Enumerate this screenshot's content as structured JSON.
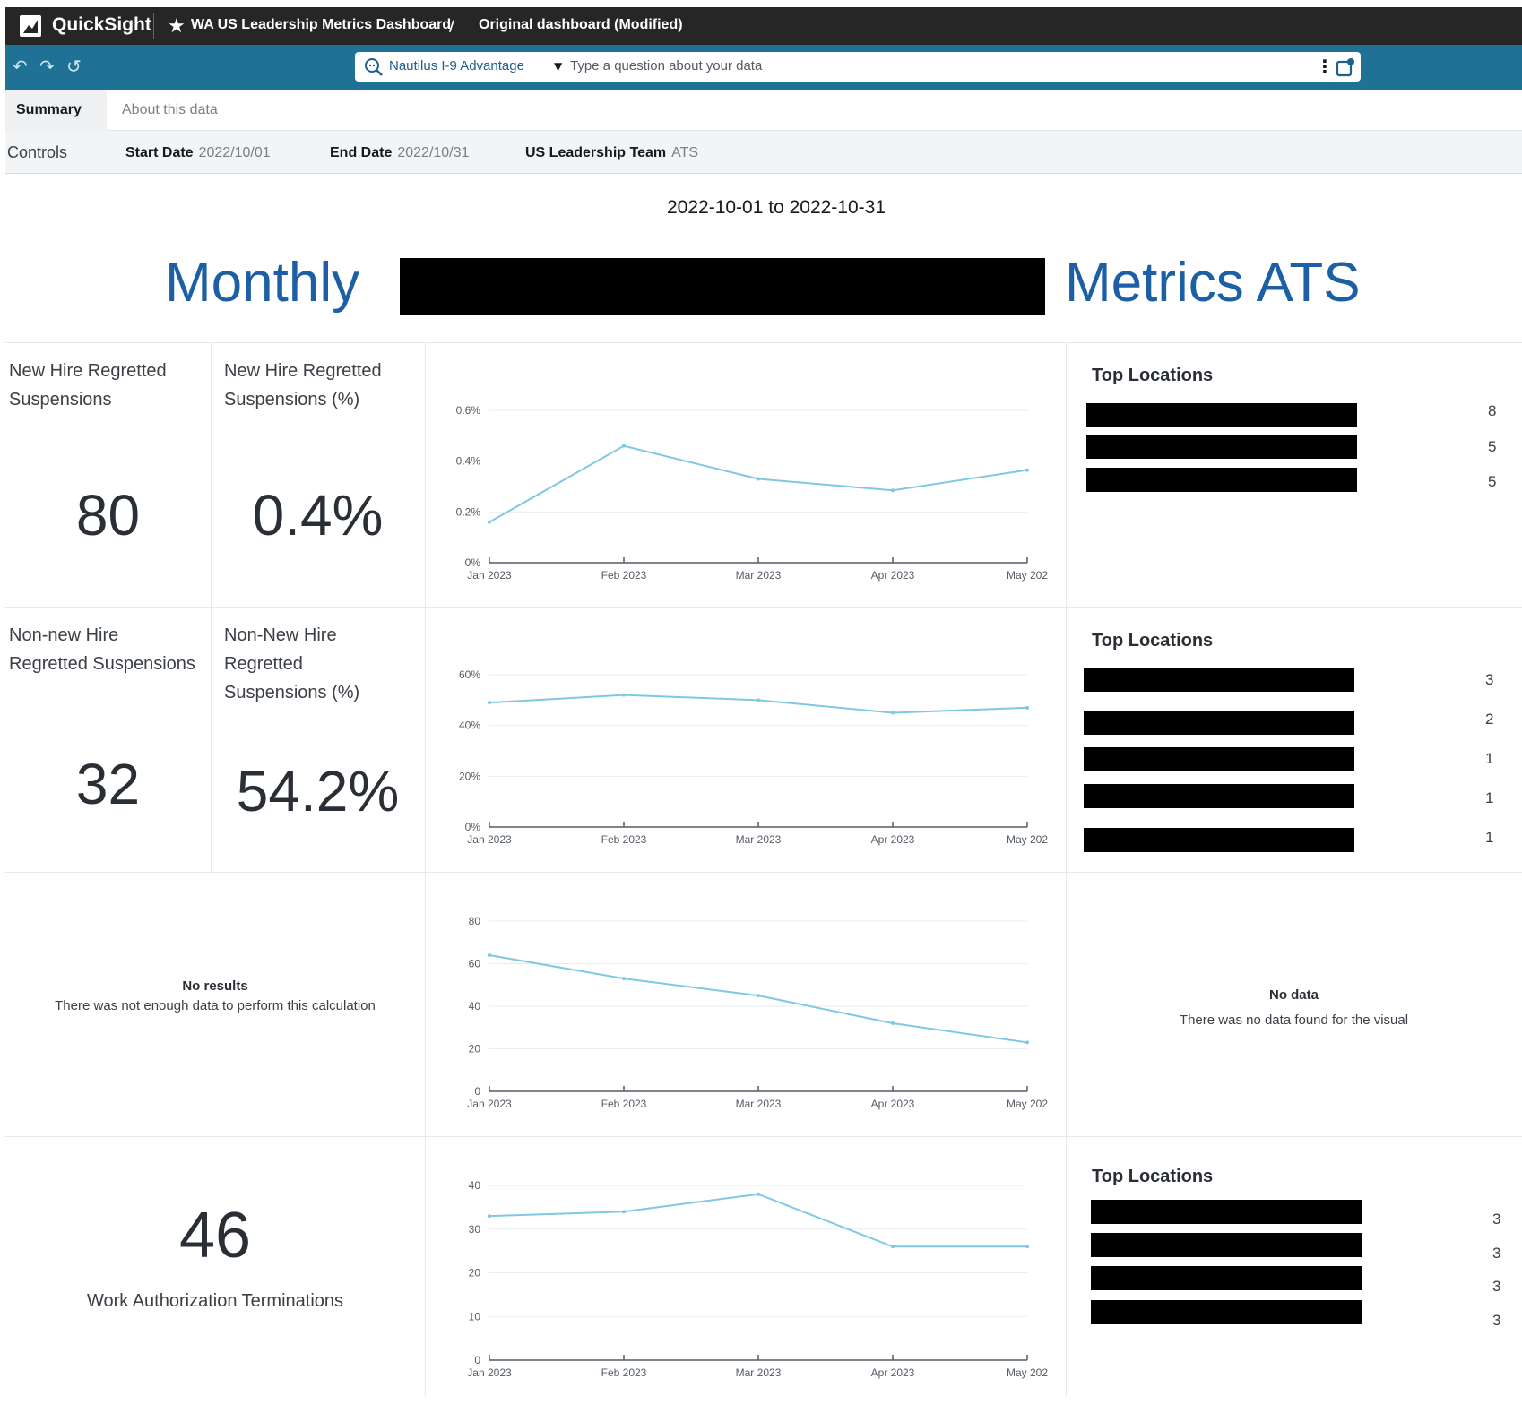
{
  "app": {
    "brand": "QuickSight",
    "breadcrumb_dashboard": "WA US Leadership Metrics Dashboard",
    "breadcrumb_separator": "/",
    "breadcrumb_version": "Original dashboard (Modified)"
  },
  "toolbar": {
    "topic": "Nautilus I-9 Advantage",
    "search_placeholder": "Type a question about your data"
  },
  "tabs": [
    {
      "label": "Summary",
      "active": true
    },
    {
      "label": "About this data",
      "active": false
    }
  ],
  "controls": {
    "label": "Controls",
    "start_date_label": "Start Date",
    "start_date_value": "2022/10/01",
    "end_date_label": "End Date",
    "end_date_value": "2022/10/31",
    "team_label": "US Leadership Team",
    "team_value": "ATS"
  },
  "header": {
    "date_range": "2022-10-01 to 2022-10-31",
    "title_left": "Monthly",
    "title_right": "Metrics ATS"
  },
  "row1": {
    "kpi1_label": "New Hire Regretted Suspensions",
    "kpi1_value": "80",
    "kpi2_label": "New Hire Regretted Suspensions (%)",
    "kpi2_value": "0.4%",
    "top_locations_title": "Top Locations",
    "top_locations_counts": [
      "8",
      "5",
      "5"
    ]
  },
  "row2": {
    "kpi1_label": "Non-new Hire Regretted Suspensions",
    "kpi1_value": "32",
    "kpi2_label": "Non-New Hire Regretted Suspensions (%)",
    "kpi2_value": "54.2%",
    "top_locations_title": "Top Locations",
    "top_locations_counts": [
      "3",
      "2",
      "1",
      "1",
      "1"
    ]
  },
  "row3": {
    "no_results_title": "No results",
    "no_results_sub": "There was not enough data to perform this calculation",
    "no_data_title": "No data",
    "no_data_sub": "There was no data found for the visual"
  },
  "row4": {
    "kpi_value": "46",
    "kpi_label": "Work Authorization Terminations",
    "top_locations_title": "Top Locations",
    "top_locations_counts": [
      "3",
      "3",
      "3",
      "3"
    ]
  },
  "colors": {
    "line": "#7ec8e3",
    "title": "#1c5fa5"
  },
  "chart_data": [
    {
      "type": "line",
      "title": "",
      "x": [
        "Jan 2023",
        "Feb 2023",
        "Mar 2023",
        "Apr 2023",
        "May 202"
      ],
      "y_ticks": [
        "0%",
        "0.2%",
        "0.4%",
        "0.6%"
      ],
      "ylim": [
        0,
        0.6
      ],
      "values": [
        0.16,
        0.46,
        0.33,
        0.285,
        0.365
      ]
    },
    {
      "type": "line",
      "title": "",
      "x": [
        "Jan 2023",
        "Feb 2023",
        "Mar 2023",
        "Apr 2023",
        "May 202"
      ],
      "y_ticks": [
        "0%",
        "20%",
        "40%",
        "60%"
      ],
      "ylim": [
        0,
        60
      ],
      "values": [
        49,
        52,
        50,
        45,
        47
      ]
    },
    {
      "type": "line",
      "title": "",
      "x": [
        "Jan 2023",
        "Feb 2023",
        "Mar 2023",
        "Apr 2023",
        "May 202"
      ],
      "y_ticks": [
        "0",
        "20",
        "40",
        "60",
        "80"
      ],
      "ylim": [
        0,
        80
      ],
      "values": [
        64,
        53,
        45,
        32,
        23
      ]
    },
    {
      "type": "line",
      "title": "",
      "x": [
        "Jan 2023",
        "Feb 2023",
        "Mar 2023",
        "Apr 2023",
        "May 202"
      ],
      "y_ticks": [
        "0",
        "10",
        "20",
        "30",
        "40"
      ],
      "ylim": [
        0,
        40
      ],
      "values": [
        33,
        34,
        38,
        26,
        26
      ]
    }
  ]
}
